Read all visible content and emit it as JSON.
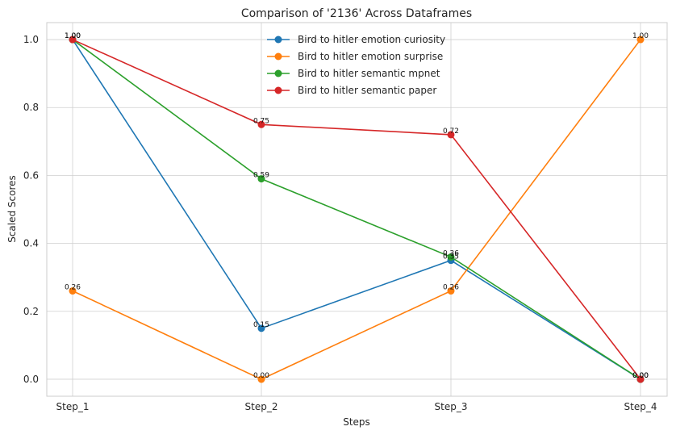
{
  "chart_data": {
    "type": "line",
    "title": "Comparison of '2136' Across Dataframes",
    "xlabel": "Steps",
    "ylabel": "Scaled Scores",
    "categories": [
      "Step_1",
      "Step_2",
      "Step_3",
      "Step_4"
    ],
    "ylim": [
      -0.05,
      1.05
    ],
    "yticks": [
      "0.0",
      "0.2",
      "0.4",
      "0.6",
      "0.8",
      "1.0"
    ],
    "grid": true,
    "legend_position": "top-center",
    "series": [
      {
        "name": "Bird to hitler emotion curiosity",
        "color": "#1f77b4",
        "values": [
          1.0,
          0.15,
          0.35,
          0.0
        ],
        "labels": [
          "1.00",
          "0.15",
          "0.35",
          "0.00"
        ]
      },
      {
        "name": "Bird to hitler emotion surprise",
        "color": "#ff7f0e",
        "values": [
          0.26,
          0.0,
          0.26,
          1.0
        ],
        "labels": [
          "0.26",
          "0.00",
          "0.26",
          "1.00"
        ]
      },
      {
        "name": "Bird to hitler semantic mpnet",
        "color": "#2ca02c",
        "values": [
          1.0,
          0.59,
          0.36,
          0.0
        ],
        "labels": [
          "1.00",
          "0.59",
          "0.36",
          "0.00"
        ]
      },
      {
        "name": "Bird to hitler semantic paper",
        "color": "#d62728",
        "values": [
          1.0,
          0.75,
          0.72,
          0.0
        ],
        "labels": [
          "1.00",
          "0.75",
          "0.72",
          "0.00"
        ]
      }
    ]
  }
}
